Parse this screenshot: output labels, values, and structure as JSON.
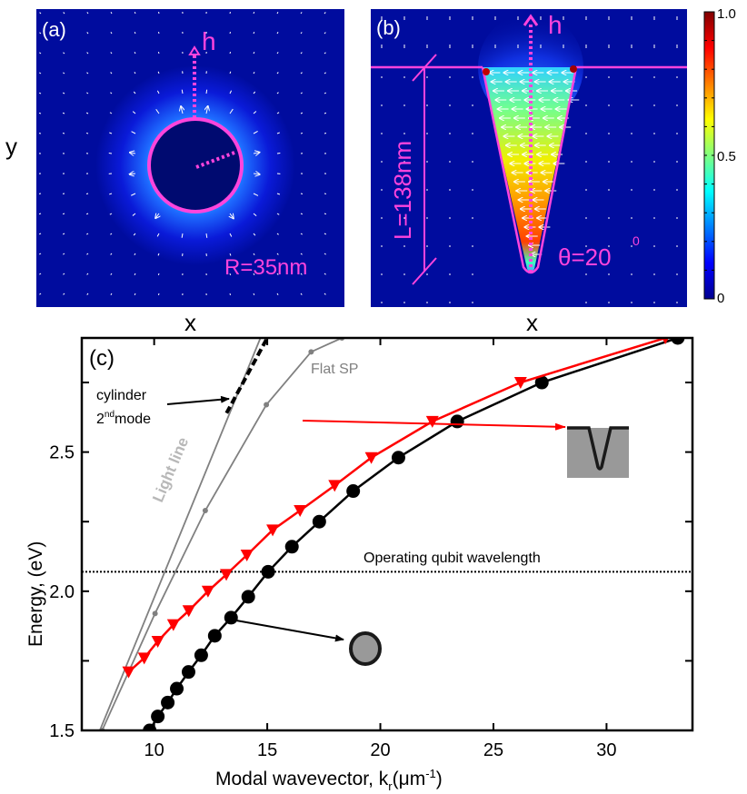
{
  "panels": {
    "a": {
      "tag": "(a)",
      "xlabel": "x",
      "ylabel": "y",
      "arrow_label": "h",
      "radius_label": "R=35nm"
    },
    "b": {
      "tag": "(b)",
      "xlabel": "x",
      "arrow_label": "h",
      "length_label": "L=138nm",
      "angle_label": "θ=20",
      "angle_sup": "0"
    },
    "colorbar": {
      "min_label": "0",
      "mid_label": "0.5",
      "max_label": "1.0",
      "range": [
        0,
        1
      ]
    }
  },
  "chart_data": {
    "type": "line",
    "panel_tag": "(c)",
    "title": "",
    "xlabel": "Modal wavevector, k",
    "xlabel_sub": "r",
    "xlabel_unit_pre": "(μm",
    "xlabel_unit_sup": "-1",
    "xlabel_unit_post": ")",
    "ylabel": "Energy, (eV)",
    "xlim": [
      6.8,
      33.8
    ],
    "ylim": [
      1.5,
      2.91
    ],
    "xticks": [
      10,
      15,
      20,
      25,
      30
    ],
    "xtick_labels": [
      "10",
      "15",
      "20",
      "25",
      "30"
    ],
    "yticks": [
      1.5,
      1.75,
      2.0,
      2.25,
      2.5,
      2.75
    ],
    "ytick_labels": [
      "1.5",
      "",
      "2.0",
      "",
      "2.5",
      ""
    ],
    "grid": false,
    "hline": {
      "y": 2.07,
      "label": "Operating qubit wavelength",
      "style": "dotted",
      "color": "#000000"
    },
    "series": [
      {
        "name": "V-groove",
        "color": "#ff0000",
        "marker": "triangle-down",
        "x": [
          8.87,
          9.56,
          10.16,
          10.85,
          11.53,
          12.38,
          13.19,
          14.1,
          15.24,
          16.45,
          17.98,
          19.6,
          22.3,
          26.2,
          32.6
        ],
        "y": [
          1.71,
          1.76,
          1.82,
          1.88,
          1.93,
          2.0,
          2.06,
          2.13,
          2.22,
          2.29,
          2.38,
          2.48,
          2.61,
          2.75,
          2.91
        ]
      },
      {
        "name": "cylinder",
        "color": "#000000",
        "marker": "circle",
        "x": [
          9.8,
          10.16,
          10.6,
          11.0,
          11.52,
          12.08,
          12.68,
          13.4,
          14.16,
          15.04,
          16.09,
          17.3,
          18.8,
          20.8,
          23.4,
          27.14,
          33.15
        ],
        "y": [
          1.5,
          1.55,
          1.6,
          1.65,
          1.71,
          1.77,
          1.84,
          1.905,
          1.98,
          2.07,
          2.16,
          2.25,
          2.36,
          2.48,
          2.61,
          2.75,
          2.91
        ]
      },
      {
        "name": "Flat SP",
        "color": "#808080",
        "marker": "small-dot",
        "x": [
          7.7,
          10.04,
          12.26,
          14.96,
          16.94,
          18.3
        ],
        "y": [
          1.5,
          1.92,
          2.29,
          2.67,
          2.86,
          2.91
        ]
      },
      {
        "name": "Light line",
        "color": "#808080",
        "marker": "none",
        "x": [
          7.6,
          14.7
        ],
        "y": [
          1.5,
          2.91
        ]
      },
      {
        "name": "cylinder 2nd mode",
        "color": "#000000",
        "marker": "none",
        "style": "dashed",
        "x": [
          13.2,
          15.0
        ],
        "y": [
          2.64,
          2.91
        ]
      }
    ],
    "annotations": [
      {
        "text": "Flat SP",
        "color": "#808080"
      },
      {
        "text": "Light line",
        "color": "#b0b0b0",
        "rotated": true
      },
      {
        "text": "cylinder",
        "color": "#000000"
      },
      {
        "text": "2",
        "sup": "nd",
        "rest": "mode",
        "color": "#000000"
      },
      {
        "text": "Operating qubit wavelength",
        "color": "#000000"
      }
    ]
  }
}
